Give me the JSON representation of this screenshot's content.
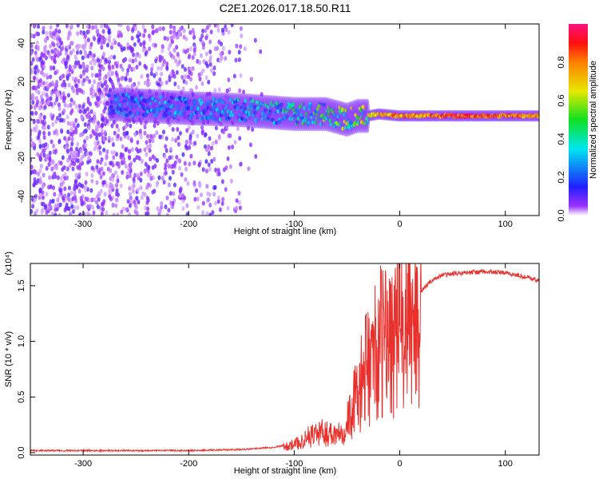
{
  "chart_data": [
    {
      "type": "heatmap",
      "title": "C2E1.2026.017.18.50.R11",
      "xlabel": "Height of straight line (km)",
      "ylabel": "Frequency (Hz)",
      "xlim": [
        -350,
        132
      ],
      "ylim": [
        -50,
        50
      ],
      "xticks": [
        -300,
        -200,
        -100,
        0,
        100
      ],
      "yticks": [
        -40,
        -20,
        0,
        20,
        40
      ],
      "colorbar": {
        "label": "Normalized spectral amplitude",
        "range": [
          0,
          1
        ],
        "ticks": [
          "0.0",
          "0.2",
          "0.4",
          "0.6",
          "0.8"
        ]
      },
      "ridge": {
        "height_km": [
          -270,
          -230,
          -200,
          -150,
          -100,
          -70,
          -50,
          -40,
          -30,
          -20,
          0,
          20,
          50,
          100,
          132
        ],
        "center_freq_hz": [
          8,
          7,
          6,
          5,
          3,
          3,
          0,
          2,
          2,
          3,
          2,
          2,
          2,
          2,
          2
        ],
        "peak_amplitude": [
          0.25,
          0.3,
          0.3,
          0.35,
          0.45,
          0.5,
          0.55,
          0.6,
          0.7,
          0.8,
          0.85,
          0.85,
          0.95,
          0.9,
          0.85
        ]
      },
      "noise_region_km": [
        -350,
        -150
      ]
    },
    {
      "type": "line",
      "xlabel": "Height of straight line (km)",
      "ylabel": "SNR (10 * v/v)",
      "yscale_label": "(x10⁴)",
      "xlim": [
        -350,
        132
      ],
      "ylim": [
        0,
        1.7
      ],
      "xticks": [
        -300,
        -200,
        -100,
        0,
        100
      ],
      "yticks": [
        "0.0",
        "0.5",
        "1.0",
        "1.5"
      ],
      "series": [
        {
          "name": "SNR",
          "color": "#e8302c",
          "x": [
            -350,
            -300,
            -250,
            -200,
            -150,
            -120,
            -100,
            -80,
            -60,
            -50,
            -40,
            -30,
            -20,
            -10,
            0,
            10,
            20,
            30,
            40,
            60,
            80,
            100,
            120,
            132
          ],
          "y": [
            0.02,
            0.02,
            0.02,
            0.02,
            0.03,
            0.05,
            0.08,
            0.2,
            0.2,
            0.3,
            0.6,
            0.9,
            1.1,
            1.2,
            1.25,
            1.3,
            1.45,
            1.55,
            1.6,
            1.62,
            1.63,
            1.62,
            1.58,
            1.55
          ]
        }
      ]
    }
  ]
}
